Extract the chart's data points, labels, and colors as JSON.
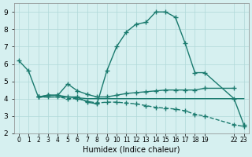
{
  "bg_color": "#d6f0f0",
  "line_color": "#1a7a6e",
  "grid_color": "#b0d8d8",
  "xlabel": "Humidex (Indice chaleur)",
  "ylim": [
    2,
    9.5
  ],
  "xlim": [
    -0.5,
    23.5
  ],
  "yticks": [
    2,
    3,
    4,
    5,
    6,
    7,
    8,
    9
  ],
  "xtick_positions": [
    0,
    1,
    2,
    3,
    4,
    5,
    6,
    7,
    8,
    9,
    10,
    11,
    12,
    13,
    14,
    15,
    16,
    17,
    18,
    19,
    22,
    23
  ],
  "xtick_labels": [
    "0",
    "1",
    "2",
    "3",
    "4",
    "5",
    "6",
    "7",
    "8",
    "9",
    "10",
    "11",
    "12",
    "13",
    "14",
    "15",
    "16",
    "17",
    "18",
    "19",
    "22",
    "23"
  ],
  "series1_x": [
    0,
    1,
    2,
    3,
    4,
    5,
    6,
    7,
    8,
    9,
    10,
    11,
    12,
    13,
    14,
    15,
    16,
    17,
    18,
    19,
    22,
    23
  ],
  "series1_y": [
    6.2,
    5.6,
    4.1,
    4.2,
    4.2,
    4.1,
    4.1,
    3.8,
    3.7,
    5.6,
    7.0,
    7.85,
    8.3,
    8.4,
    9.0,
    9.0,
    8.7,
    7.2,
    5.5,
    5.5,
    4.0,
    2.5
  ],
  "series2_x": [
    2,
    3,
    4,
    5,
    6,
    7,
    8,
    9,
    10,
    11,
    12,
    13,
    14,
    15,
    16,
    17,
    18,
    19,
    22
  ],
  "series2_y": [
    4.1,
    4.2,
    4.2,
    4.85,
    4.45,
    4.25,
    4.1,
    4.1,
    4.2,
    4.3,
    4.35,
    4.4,
    4.45,
    4.5,
    4.5,
    4.5,
    4.5,
    4.6,
    4.6
  ],
  "series3_x": [
    2,
    3,
    4,
    5,
    6,
    7,
    8,
    9,
    10,
    11,
    12,
    13,
    14,
    15,
    16,
    17,
    18,
    19,
    22,
    23
  ],
  "series3_y": [
    4.1,
    4.1,
    4.1,
    4.1,
    4.05,
    4.0,
    4.0,
    4.0,
    4.0,
    4.0,
    4.0,
    4.0,
    4.0,
    4.0,
    4.0,
    4.0,
    4.0,
    4.0,
    4.0,
    4.0
  ],
  "series4_x": [
    2,
    3,
    4,
    5,
    6,
    7,
    8,
    9,
    10,
    11,
    12,
    13,
    14,
    15,
    16,
    17,
    18,
    19,
    22,
    23
  ],
  "series4_y": [
    4.1,
    4.1,
    4.1,
    4.0,
    4.0,
    3.85,
    3.75,
    3.8,
    3.8,
    3.75,
    3.7,
    3.6,
    3.5,
    3.45,
    3.4,
    3.3,
    3.1,
    3.0,
    2.5,
    2.4
  ]
}
